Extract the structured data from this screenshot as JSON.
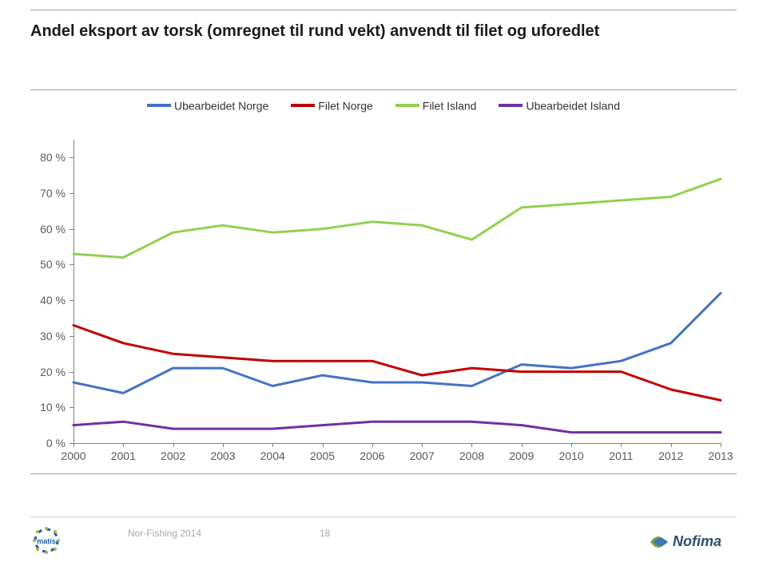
{
  "title": {
    "text": "Andel eksport av torsk (omregnet til rund vekt) anvendt til filet  og uforedlet",
    "fontsize": 20,
    "color": "#1a1a1a",
    "bold": true
  },
  "chart": {
    "type": "line",
    "background_color": "#ffffff",
    "frame_border_color": "#a0a0a0",
    "axis_color": "#808080",
    "tick_fontsize": 14,
    "tick_color": "#595959",
    "x": {
      "categories": [
        "2000",
        "2001",
        "2002",
        "2003",
        "2004",
        "2005",
        "2006",
        "2007",
        "2008",
        "2009",
        "2010",
        "2011",
        "2012",
        "2013"
      ]
    },
    "y": {
      "min": 0,
      "max": 85,
      "tick_step": 10,
      "suffix": " %"
    },
    "line_width": 3,
    "legend": {
      "position": "top",
      "fontsize": 14
    },
    "series": [
      {
        "name": "Ubearbeidet Norge",
        "color": "#4472c4",
        "values": [
          17,
          14,
          21,
          21,
          16,
          19,
          17,
          17,
          16,
          22,
          21,
          23,
          28,
          42
        ]
      },
      {
        "name": "Filet Norge",
        "color": "#c00000",
        "values": [
          33,
          28,
          25,
          24,
          23,
          23,
          23,
          19,
          21,
          20,
          20,
          20,
          15,
          12
        ]
      },
      {
        "name": "Filet Island",
        "color": "#92d050",
        "values": [
          53,
          52,
          59,
          61,
          59,
          60,
          62,
          61,
          57,
          66,
          67,
          68,
          69,
          74
        ]
      },
      {
        "name": "Ubearbeidet Island",
        "color": "#7030a0",
        "values": [
          5,
          6,
          4,
          4,
          4,
          5,
          6,
          6,
          6,
          5,
          3,
          3,
          3,
          3
        ]
      }
    ]
  },
  "footer": {
    "source": "Nor-Fishing 2014",
    "page_number": "18",
    "logo_left": {
      "text": "matís",
      "ring": "#1a5aa8",
      "dots": "#9bb942"
    },
    "logo_right": {
      "text": "Nofima",
      "swoosh1": "#3a78b5",
      "swoosh2": "#7aa23c",
      "text_color": "#2d4e72"
    }
  }
}
